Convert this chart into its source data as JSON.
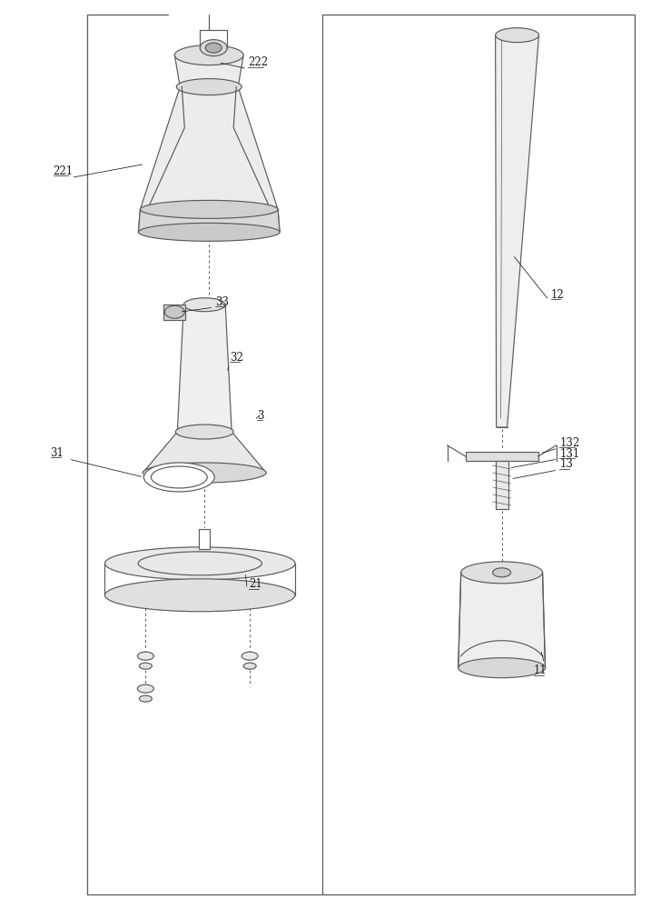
{
  "bg": "#ffffff",
  "lc": "#5a5a5a",
  "tc": "#1a1a1a",
  "lw": 0.85,
  "fig_w": 7.17,
  "fig_h": 10.0,
  "dpi": 100
}
